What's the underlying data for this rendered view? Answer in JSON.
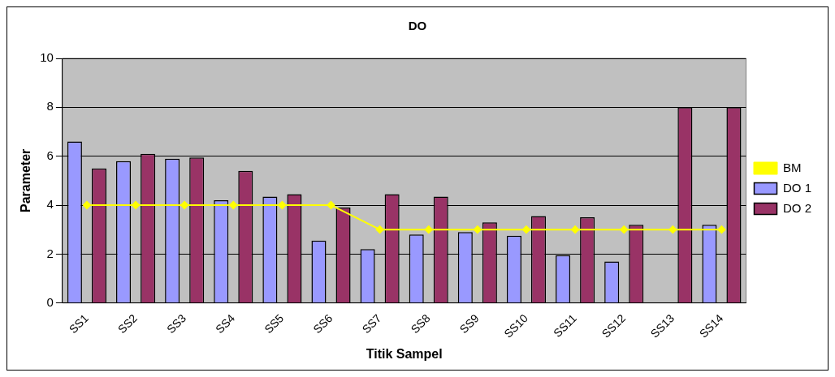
{
  "chart_data": {
    "type": "bar",
    "title": "DO",
    "xlabel": "Titik Sampel",
    "ylabel": "Parameter",
    "categories": [
      "SS1",
      "SS2",
      "SS3",
      "SS4",
      "SS5",
      "SS6",
      "SS7",
      "SS8",
      "SS9",
      "SS10",
      "SS11",
      "SS12",
      "SS13",
      "SS14"
    ],
    "series": [
      {
        "name": "DO 1",
        "color": "#9999ff",
        "values": [
          6.6,
          5.8,
          5.9,
          4.2,
          4.35,
          2.55,
          2.2,
          2.8,
          2.9,
          2.75,
          1.95,
          1.7,
          null,
          3.2
        ]
      },
      {
        "name": "DO 2",
        "color": "#993366",
        "values": [
          5.5,
          6.1,
          5.95,
          5.4,
          4.45,
          3.9,
          4.45,
          4.35,
          3.3,
          3.55,
          3.5,
          3.2,
          8,
          8
        ]
      },
      {
        "name": "BM",
        "type": "line",
        "color": "#ffff00",
        "marker": "diamond",
        "line_style": "solid",
        "values": [
          4,
          4,
          4,
          4,
          4,
          4,
          3,
          3,
          3,
          3,
          3,
          3,
          3,
          3
        ]
      }
    ],
    "ylim": [
      0,
      10
    ],
    "yticks": [
      0,
      2,
      4,
      6,
      8,
      10
    ],
    "grid": "y",
    "legend": "right"
  }
}
